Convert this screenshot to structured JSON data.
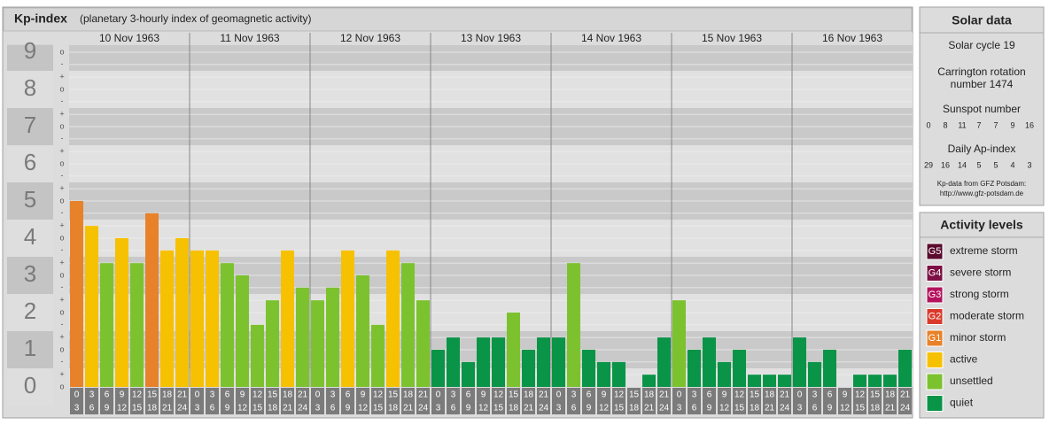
{
  "chart_data": {
    "type": "bar",
    "title": "Kp-index",
    "subtitle": "(planetary 3-hourly index of geomagnetic activity)",
    "days": [
      "10 Nov 1963",
      "11 Nov 1963",
      "12 Nov 1963",
      "13 Nov 1963",
      "14 Nov 1963",
      "15 Nov 1963",
      "16 Nov 1963"
    ],
    "hours_start": [
      0,
      3,
      6,
      9,
      12,
      15,
      18,
      21
    ],
    "hours_end": [
      3,
      6,
      9,
      12,
      15,
      18,
      21,
      24
    ],
    "values": [
      5,
      4.33,
      3.33,
      4,
      3.33,
      4.67,
      3.67,
      4,
      3.67,
      3.67,
      3.33,
      3,
      1.67,
      2.33,
      3.67,
      2.67,
      2.33,
      2.67,
      3.67,
      3,
      1.67,
      3.67,
      3.33,
      2.33,
      1,
      1.33,
      0.67,
      1.33,
      1.33,
      2,
      1,
      1.33,
      1.33,
      3.33,
      1,
      0.67,
      0.67,
      0,
      0.33,
      1.33,
      2.33,
      1,
      1.33,
      0.67,
      1,
      0.33,
      0.33,
      0.33,
      1.33,
      0.67,
      1,
      0,
      0.33,
      0.33,
      0.33,
      1
    ],
    "colors": [
      "#e8822a",
      "#f6c100",
      "#7cc22f",
      "#f6c100",
      "#7cc22f",
      "#e8822a",
      "#f6c100",
      "#f6c100",
      "#f6c100",
      "#f6c100",
      "#7cc22f",
      "#7cc22f",
      "#7cc22f",
      "#7cc22f",
      "#f6c100",
      "#7cc22f",
      "#7cc22f",
      "#7cc22f",
      "#f6c100",
      "#7cc22f",
      "#7cc22f",
      "#f6c100",
      "#7cc22f",
      "#7cc22f",
      "#0a9447",
      "#0a9447",
      "#0a9447",
      "#0a9447",
      "#0a9447",
      "#7cc22f",
      "#0a9447",
      "#0a9447",
      "#0a9447",
      "#7cc22f",
      "#0a9447",
      "#0a9447",
      "#0a9447",
      "#0a9447",
      "#0a9447",
      "#0a9447",
      "#7cc22f",
      "#0a9447",
      "#0a9447",
      "#0a9447",
      "#0a9447",
      "#0a9447",
      "#0a9447",
      "#0a9447",
      "#0a9447",
      "#0a9447",
      "#0a9447",
      "#0a9447",
      "#0a9447",
      "#0a9447",
      "#0a9447",
      "#0a9447"
    ],
    "ylim": [
      0,
      9.2
    ],
    "yticks": [
      0,
      1,
      2,
      3,
      4,
      5,
      6,
      7,
      8,
      9
    ],
    "minor_yticks": [
      {
        "value": 0,
        "label": "o"
      },
      {
        "value": 0.33,
        "label": "+"
      },
      {
        "value": 0.67,
        "label": "-"
      },
      {
        "value": 1,
        "label": "o"
      },
      {
        "value": 1.33,
        "label": "+"
      },
      {
        "value": 1.67,
        "label": "-"
      },
      {
        "value": 2,
        "label": "o"
      },
      {
        "value": 2.33,
        "label": "+"
      },
      {
        "value": 2.67,
        "label": "-"
      },
      {
        "value": 3,
        "label": "o"
      },
      {
        "value": 3.33,
        "label": "+"
      },
      {
        "value": 3.67,
        "label": "-"
      },
      {
        "value": 4,
        "label": "o"
      },
      {
        "value": 4.33,
        "label": "+"
      },
      {
        "value": 4.67,
        "label": "-"
      },
      {
        "value": 5,
        "label": "o"
      },
      {
        "value": 5.33,
        "label": "+"
      },
      {
        "value": 5.67,
        "label": "-"
      },
      {
        "value": 6,
        "label": "o"
      },
      {
        "value": 6.33,
        "label": "+"
      },
      {
        "value": 6.67,
        "label": "-"
      },
      {
        "value": 7,
        "label": "o"
      },
      {
        "value": 7.33,
        "label": "+"
      },
      {
        "value": 7.67,
        "label": "-"
      },
      {
        "value": 8,
        "label": "o"
      },
      {
        "value": 8.33,
        "label": "+"
      },
      {
        "value": 8.67,
        "label": "-"
      },
      {
        "value": 9,
        "label": "o"
      }
    ],
    "grid": true
  },
  "solar_data": {
    "title": "Solar data",
    "cycle": "Solar cycle 19",
    "carrington_1": "Carrington rotation",
    "carrington_2": "number 1474",
    "sunspot_title": "Sunspot number",
    "sunspot": [
      0,
      8,
      11,
      7,
      7,
      9,
      16
    ],
    "ap_title": "Daily Ap-index",
    "ap": [
      29,
      16,
      14,
      5,
      5,
      4,
      3
    ],
    "source": "Kp-data from GFZ Potsdam:",
    "url": "http://www.gfz-potsdam.de"
  },
  "activity_levels": {
    "title": "Activity levels",
    "levels": [
      {
        "badge": "G5",
        "name": "extreme storm",
        "color": "#5a0b2e"
      },
      {
        "badge": "G4",
        "name": "severe storm",
        "color": "#7d1044"
      },
      {
        "badge": "G3",
        "name": "strong storm",
        "color": "#b3135d"
      },
      {
        "badge": "G2",
        "name": "moderate storm",
        "color": "#d93a2b"
      },
      {
        "badge": "G1",
        "name": "minor storm",
        "color": "#e8822a"
      },
      {
        "name": "active",
        "color": "#f6c100"
      },
      {
        "name": "unsettled",
        "color": "#7cc22f"
      },
      {
        "name": "quiet",
        "color": "#0a9447"
      }
    ]
  }
}
